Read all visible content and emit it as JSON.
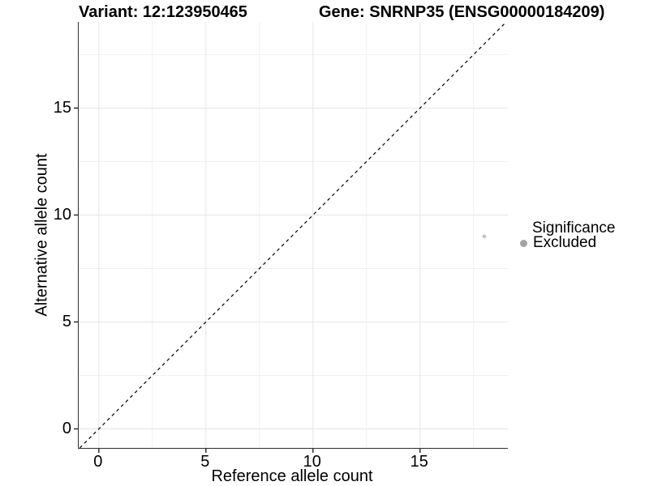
{
  "header": {
    "variant_title": "Variant: 12:123950465",
    "gene_title": "Gene: SNRNP35 (ENSG00000184209)"
  },
  "chart_data": {
    "type": "scatter",
    "title_left": "Variant: 12:123950465",
    "title_right": "Gene: SNRNP35 (ENSG00000184209)",
    "xlabel": "Reference allele count",
    "ylabel": "Alternative allele count",
    "x_range": [
      -0.94,
      19.1
    ],
    "y_range": [
      -0.89,
      19.03
    ],
    "x_ticks": [
      0,
      5,
      10,
      15
    ],
    "y_ticks": [
      0,
      5,
      10,
      15
    ],
    "minor_gridlines": [
      2.5,
      7.5,
      12.5,
      17.5
    ],
    "grid": true,
    "points": [
      {
        "x": 18,
        "y": 9,
        "significance": "Excluded",
        "color": "#bfbfbf",
        "radius": 2.3
      }
    ],
    "reference_line": {
      "type": "identity y=x",
      "style": "dashed",
      "color": "#000000"
    },
    "legend": {
      "title": "Significance",
      "position": "right",
      "entries": [
        {
          "label": "Excluded",
          "color": "#a3a3a3"
        }
      ]
    },
    "colors": {
      "major_grid": "#e5e5e5",
      "minor_grid": "#f0f0f0",
      "axis_line": "#2f2f2f",
      "tick_mark": "#2f2f2f",
      "point": "#bfbfbf",
      "legend_key": "#a3a3a3"
    }
  }
}
